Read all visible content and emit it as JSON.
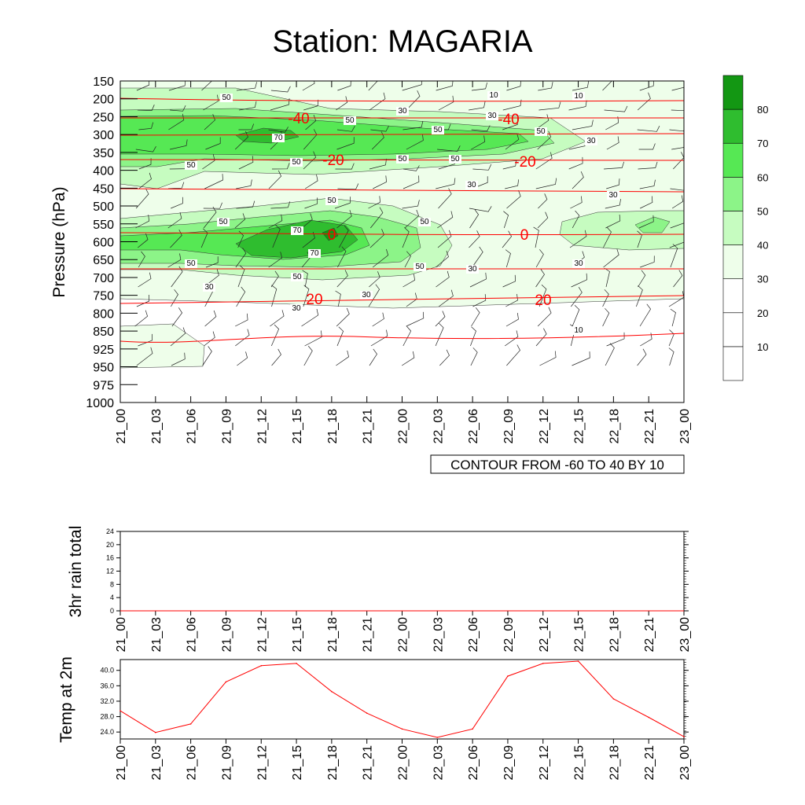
{
  "chart_data": [
    {
      "type": "contour",
      "title": "Station: MAGARIA",
      "ylabel": "Pressure (hPa)",
      "pressure_levels": [
        "150",
        "200",
        "250",
        "300",
        "350",
        "400",
        "450",
        "500",
        "550",
        "600",
        "650",
        "700",
        "750",
        "800",
        "850",
        "925",
        "950",
        "975",
        "1000"
      ],
      "time_labels": [
        "21_00",
        "21_03",
        "21_06",
        "21_09",
        "21_12",
        "21_15",
        "21_18",
        "21_21",
        "22_00",
        "22_03",
        "22_06",
        "22_09",
        "22_12",
        "22_15",
        "22_18",
        "22_21",
        "23_00"
      ],
      "fill_variable": "wind speed (shaded, green)",
      "fill_levels": [
        10,
        20,
        30,
        40,
        50,
        60,
        70,
        80
      ],
      "fill_colors": [
        "#ffffff",
        "#ffffff",
        "#ffffff",
        "#eefeea",
        "#c6fcc0",
        "#8cf488",
        "#56e854",
        "#2fbd2f",
        "#139713"
      ],
      "wind_contour_labels": [
        "10",
        "30",
        "50",
        "70"
      ],
      "temperature_contour_labels": [
        "-40",
        "-20",
        "0",
        "20"
      ],
      "temperature_color": "#ff0000",
      "contour_info": "CONTOUR FROM -60 TO 40 BY 10"
    },
    {
      "type": "line",
      "ylabel": "3hr rain total",
      "ylim": [
        0,
        24
      ],
      "y_ticks": [
        "0",
        "4",
        "8",
        "12",
        "16",
        "20",
        "24"
      ],
      "x": [
        "21_00",
        "21_03",
        "21_06",
        "21_09",
        "21_12",
        "21_15",
        "21_18",
        "21_21",
        "22_00",
        "22_03",
        "22_06",
        "22_09",
        "22_12",
        "22_15",
        "22_18",
        "22_21",
        "23_00"
      ],
      "values": [
        0,
        0,
        0,
        0,
        0,
        0,
        0,
        0,
        0,
        0,
        0,
        0,
        0,
        0,
        0,
        0,
        0
      ]
    },
    {
      "type": "line",
      "ylabel": "Temp at 2m",
      "ylim": [
        22.2,
        42.8
      ],
      "y_ticks": [
        "24.0",
        "28.0",
        "32.0",
        "36.0",
        "40.0"
      ],
      "x": [
        "21_00",
        "21_03",
        "21_06",
        "21_09",
        "21_12",
        "21_15",
        "21_18",
        "21_21",
        "22_00",
        "22_03",
        "22_06",
        "22_09",
        "22_12",
        "22_15",
        "22_18",
        "22_21",
        "23_00"
      ],
      "values": [
        29.5,
        23.9,
        26.1,
        37.0,
        41.2,
        41.8,
        34.5,
        28.9,
        24.8,
        22.6,
        24.8,
        38.5,
        41.8,
        42.4,
        32.6,
        27.8,
        22.8
      ],
      "color": "#ff0000"
    }
  ]
}
